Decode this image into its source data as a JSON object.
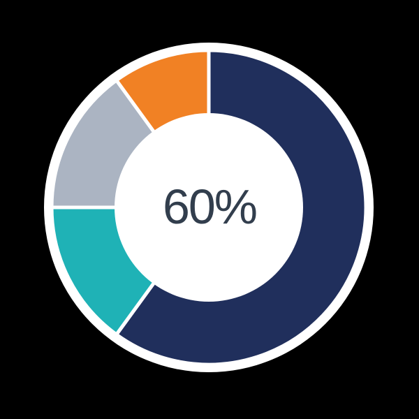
{
  "background_color": "#000000",
  "chart_data": {
    "type": "pie",
    "subtype": "donut",
    "title": "",
    "center_label": "60%",
    "center_label_color": "#323E4D",
    "start_angle_deg": 0,
    "direction": "clockwise",
    "hole_ratio": 0.6,
    "separator_color": "#FFFFFF",
    "halo_color": "#FFFFFF",
    "legend": "none",
    "segments": [
      {
        "name": "navy",
        "value": 60,
        "color": "#202F5C"
      },
      {
        "name": "teal",
        "value": 15,
        "color": "#1FB2B6"
      },
      {
        "name": "gray",
        "value": 15,
        "color": "#ABB4C2"
      },
      {
        "name": "orange",
        "value": 10,
        "color": "#F18124"
      }
    ]
  }
}
